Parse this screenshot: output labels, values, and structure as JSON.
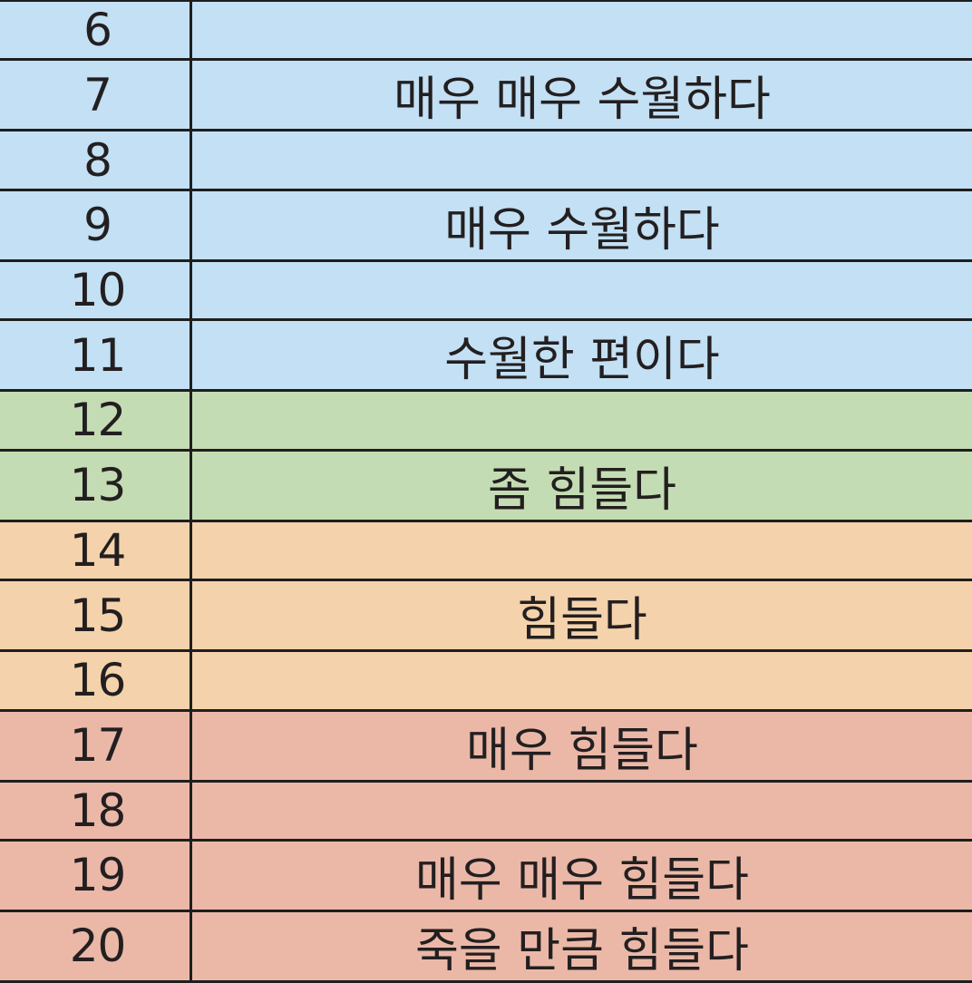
{
  "bands": {
    "blue": "#c3e0f4",
    "green": "#c4dcb3",
    "orange": "#f4d2ab",
    "red": "#ebb8a8"
  },
  "rows": [
    {
      "number": "6",
      "label": "",
      "band": "blue"
    },
    {
      "number": "7",
      "label": "매우 매우 수월하다",
      "band": "blue"
    },
    {
      "number": "8",
      "label": "",
      "band": "blue"
    },
    {
      "number": "9",
      "label": "매우 수월하다",
      "band": "blue"
    },
    {
      "number": "10",
      "label": "",
      "band": "blue"
    },
    {
      "number": "11",
      "label": "수월한 편이다",
      "band": "blue"
    },
    {
      "number": "12",
      "label": "",
      "band": "green"
    },
    {
      "number": "13",
      "label": "좀 힘들다",
      "band": "green"
    },
    {
      "number": "14",
      "label": "",
      "band": "orange"
    },
    {
      "number": "15",
      "label": "힘들다",
      "band": "orange"
    },
    {
      "number": "16",
      "label": "",
      "band": "orange"
    },
    {
      "number": "17",
      "label": "매우 힘들다",
      "band": "red"
    },
    {
      "number": "18",
      "label": "",
      "band": "red"
    },
    {
      "number": "19",
      "label": "매우 매우 힘들다",
      "band": "red"
    },
    {
      "number": "20",
      "label": "죽을 만큼 힘들다",
      "band": "red"
    }
  ]
}
